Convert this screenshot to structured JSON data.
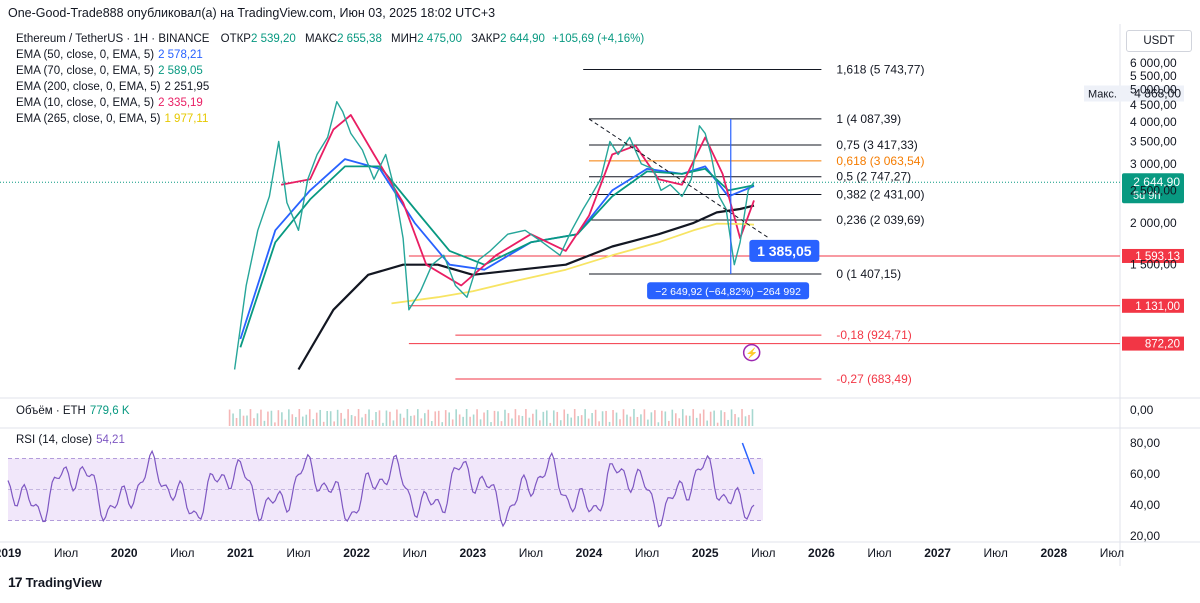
{
  "header": {
    "publisher_line": "One-Good-Trade888 опубликовал(а) на TradingView.com, Июн 03, 2025 18:02 UTC+3"
  },
  "symbol": {
    "name": "Ethereum / TetherUS · 1H · BINANCE",
    "open_label": "ОТКР",
    "open": "2 539,20",
    "high_label": "МАКС",
    "high": "2 655,38",
    "low_label": "МИН",
    "low": "2 475,00",
    "close_label": "ЗАКР",
    "close": "2 644,90",
    "change": "+105,69 (+4,16%)"
  },
  "emas": [
    {
      "label": "EMA (50, close, 0, EMA, 5)",
      "value": "2 578,21",
      "color": "#2962ff"
    },
    {
      "label": "EMA (70, close, 0, EMA, 5)",
      "value": "2 589,05",
      "color": "#089981"
    },
    {
      "label": "EMA (200, close, 0, EMA, 5)",
      "value": "2 251,95",
      "color": "#131722"
    },
    {
      "label": "EMA (10, close, 0, EMA, 5)",
      "value": "2 335,19",
      "color": "#e91e63"
    },
    {
      "label": "EMA (265, close, 0, EMA, 5)",
      "value": "1 977,11",
      "color": "#f7e463"
    }
  ],
  "volume": {
    "label": "Объём · ETH",
    "value": "779,6 K",
    "axis": "0,00"
  },
  "rsi": {
    "label": "RSI (14, close)",
    "value": "54,21",
    "ticks": [
      "80,00",
      "60,00",
      "40,00",
      "20,00"
    ]
  },
  "currency_button": "USDT",
  "branding": "TradingView",
  "chart_data": {
    "type": "line",
    "title": "Ethereum / TetherUS · 1H · BINANCE",
    "price_axis": {
      "ticks": [
        "6 000,00",
        "5 500,00",
        "5 000,00",
        "4 500,00",
        "4 000,00",
        "3 500,00",
        "3 000,00",
        "2 500,00",
        "2 000,00",
        "1 500,00"
      ],
      "tick_values": [
        6000,
        5500,
        5000,
        4500,
        4000,
        3500,
        3000,
        2500,
        2000,
        1500
      ],
      "ylim": [
        700,
        6300
      ]
    },
    "time_axis": {
      "ticks": [
        "2019",
        "Июл",
        "2020",
        "Июл",
        "2021",
        "Июл",
        "2022",
        "Июл",
        "2023",
        "Июл",
        "2024",
        "Июл",
        "2025",
        "Июл",
        "2026",
        "Июл",
        "2027",
        "Июл",
        "2028",
        "Июл"
      ],
      "tick_values": [
        2019,
        2019.5,
        2020,
        2020.5,
        2021,
        2021.5,
        2022,
        2022.5,
        2023,
        2023.5,
        2024,
        2024.5,
        2025,
        2025.5,
        2026,
        2026.5,
        2027,
        2027.5,
        2028,
        2028.5
      ],
      "xlim": [
        2019,
        2028.75
      ]
    },
    "price": {
      "x": [
        2020.95,
        2021.05,
        2021.15,
        2021.25,
        2021.33,
        2021.4,
        2021.5,
        2021.58,
        2021.66,
        2021.75,
        2021.83,
        2021.88,
        2021.95,
        2022.05,
        2022.15,
        2022.25,
        2022.33,
        2022.4,
        2022.45,
        2022.55,
        2022.65,
        2022.75,
        2022.85,
        2022.95,
        2023.05,
        2023.15,
        2023.3,
        2023.45,
        2023.6,
        2023.75,
        2023.85,
        2023.95,
        2024.0,
        2024.1,
        2024.18,
        2024.25,
        2024.35,
        2024.45,
        2024.55,
        2024.62,
        2024.7,
        2024.8,
        2024.88,
        2024.95,
        2025.0,
        2025.05,
        2025.12,
        2025.18,
        2025.25,
        2025.3,
        2025.37,
        2025.42
      ],
      "y": [
        730,
        1300,
        1900,
        2400,
        3500,
        2300,
        1900,
        2700,
        3200,
        3600,
        4600,
        4300,
        3700,
        3300,
        2700,
        3200,
        2500,
        1800,
        1100,
        1250,
        1500,
        1600,
        1300,
        1200,
        1550,
        1650,
        1850,
        1900,
        1750,
        1600,
        1900,
        2200,
        2350,
        2700,
        3500,
        3200,
        3600,
        3000,
        2900,
        2500,
        2600,
        2400,
        2700,
        3900,
        3700,
        3200,
        2400,
        2200,
        1500,
        1750,
        2500,
        2645
      ]
    },
    "series": [
      {
        "name": "EMA (50, close, 0, EMA, 5)",
        "color": "#2962ff",
        "x": [
          2021.0,
          2021.3,
          2021.6,
          2021.9,
          2022.2,
          2022.5,
          2022.8,
          2023.1,
          2023.5,
          2023.9,
          2024.2,
          2024.5,
          2024.8,
          2025.0,
          2025.2,
          2025.42
        ],
        "y": [
          900,
          1900,
          2500,
          3100,
          2900,
          2000,
          1500,
          1450,
          1750,
          1850,
          2500,
          2900,
          2800,
          2950,
          2400,
          2578
        ]
      },
      {
        "name": "EMA (70, close, 0, EMA, 5)",
        "color": "#089981",
        "x": [
          2021.0,
          2021.3,
          2021.6,
          2021.9,
          2022.2,
          2022.5,
          2022.8,
          2023.1,
          2023.5,
          2023.9,
          2024.2,
          2024.5,
          2024.8,
          2025.0,
          2025.2,
          2025.42
        ],
        "y": [
          850,
          1750,
          2350,
          2950,
          2950,
          2200,
          1650,
          1500,
          1750,
          1850,
          2400,
          2850,
          2800,
          2900,
          2500,
          2589
        ]
      },
      {
        "name": "EMA (200, close, 0, EMA, 5)",
        "color": "#131722",
        "x": [
          2021.5,
          2021.8,
          2022.1,
          2022.4,
          2022.7,
          2023.0,
          2023.4,
          2023.8,
          2024.2,
          2024.6,
          2024.9,
          2025.1,
          2025.3,
          2025.42
        ],
        "y": [
          730,
          1100,
          1400,
          1500,
          1500,
          1400,
          1450,
          1500,
          1700,
          1850,
          2000,
          2150,
          2200,
          2252
        ]
      },
      {
        "name": "EMA (10, close, 0, EMA, 5)",
        "color": "#e91e63",
        "x": [
          2021.35,
          2021.6,
          2021.8,
          2021.95,
          2022.15,
          2022.4,
          2022.6,
          2022.9,
          2023.2,
          2023.5,
          2023.8,
          2024.0,
          2024.2,
          2024.4,
          2024.6,
          2024.8,
          2025.0,
          2025.15,
          2025.3,
          2025.42
        ],
        "y": [
          2600,
          2700,
          3800,
          4200,
          3200,
          2300,
          1500,
          1300,
          1600,
          1850,
          1650,
          2100,
          3200,
          3400,
          2700,
          2600,
          3600,
          2800,
          1800,
          2335
        ]
      },
      {
        "name": "EMA (265, close, 0, EMA, 5)",
        "color": "#f7e463",
        "x": [
          2022.3,
          2022.7,
          2023.0,
          2023.4,
          2023.8,
          2024.2,
          2024.6,
          2024.9,
          2025.1,
          2025.3,
          2025.42
        ],
        "y": [
          1150,
          1200,
          1250,
          1350,
          1450,
          1600,
          1750,
          1900,
          1990,
          1985,
          1977
        ]
      }
    ],
    "fib_levels": [
      {
        "label": "1,618 (5 743,77)",
        "value": 5743.77,
        "color": "#131722"
      },
      {
        "label": "1 (4 087,39)",
        "value": 4087.39,
        "color": "#131722"
      },
      {
        "label": "0,75 (3 417,33)",
        "value": 3417.33,
        "color": "#131722"
      },
      {
        "label": "0,618 (3 063,54)",
        "value": 3063.54,
        "color": "#f57c00"
      },
      {
        "label": "0,5 (2 747,27)",
        "value": 2747.27,
        "color": "#131722"
      },
      {
        "label": "0,382 (2 431,00)",
        "value": 2431.0,
        "color": "#131722"
      },
      {
        "label": "0,236 (2 039,69)",
        "value": 2039.69,
        "color": "#131722"
      },
      {
        "label": "0 (1 407,15)",
        "value": 1407.15,
        "color": "#131722"
      },
      {
        "label": "-0,18 (924,71)",
        "value": 924.71,
        "color": "#f23645"
      },
      {
        "label": "-0,27 (683,49)",
        "value": 683.49,
        "color": "#f23645"
      }
    ],
    "horizontal_levels": [
      {
        "label": "1 593,13",
        "value": 1593.13,
        "color": "#f23645"
      },
      {
        "label": "1 131,00",
        "value": 1131.0,
        "color": "#f23645"
      },
      {
        "label": "872,20",
        "value": 872.2,
        "color": "#f23645"
      }
    ],
    "max_marker": {
      "label": "Макс.",
      "value_label": "4 868,00",
      "value": 4868
    },
    "current_price": {
      "label": "2 644,90",
      "sub": "5d 9h",
      "value": 2644.9,
      "color": "#089981"
    },
    "measure": {
      "label": "1 385,05",
      "range_text": "−2 649,92 (−64,82%) −264 992"
    }
  }
}
